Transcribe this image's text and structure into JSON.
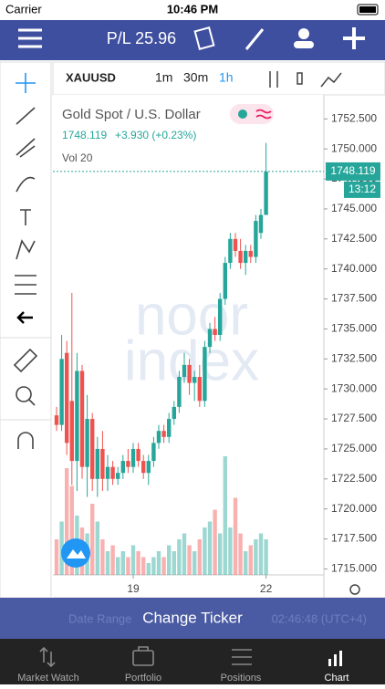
{
  "status_bar": {
    "carrier": "Carrier",
    "time": "10:46 PM"
  },
  "nav_bar": {
    "title": "P/L 25.96"
  },
  "chart_toolbar": {
    "symbol": "XAUUSD",
    "intervals": [
      "1m",
      "30m",
      "1h"
    ]
  },
  "chart_data": {
    "type": "candlestick",
    "title": "Gold Spot / U.S. Dollar",
    "change": "+3.930 (+0.23%)",
    "volume_label": "Vol 20",
    "watermark": [
      "noor",
      "index"
    ],
    "countdown": "13:12",
    "up_color": "#26a69a",
    "down_color": "#ef5350",
    "open": [
      1727.8,
      1727.0,
      1733.0,
      1729.0,
      1724.0,
      1731.5,
      1723.5,
      1727.5,
      1722.5,
      1725.0,
      1722.5,
      1723.5,
      1722.5,
      1723.0,
      1724.0,
      1723.5,
      1725.0,
      1724.0,
      1723.0,
      1724.0,
      1725.5,
      1726.5,
      1726.0,
      1727.5,
      1728.5,
      1731.0,
      1732.0,
      1730.5,
      1731.0,
      1729.0,
      1733.5,
      1735.0,
      1734.5,
      1737.5,
      1740.5,
      1742.5,
      1741.5,
      1740.5,
      1741.5,
      1741.0,
      1743.0,
      1744.5
    ],
    "high": [
      1728.5,
      1734.5,
      1734.0,
      1738.0,
      1733.0,
      1732.0,
      1729.5,
      1728.0,
      1726.0,
      1726.5,
      1724.5,
      1724.0,
      1723.5,
      1724.5,
      1725.0,
      1725.5,
      1725.5,
      1724.5,
      1724.5,
      1726.0,
      1727.0,
      1727.0,
      1728.0,
      1729.0,
      1731.5,
      1733.0,
      1732.5,
      1731.5,
      1732.0,
      1734.0,
      1735.5,
      1736.0,
      1738.0,
      1741.0,
      1743.0,
      1743.0,
      1742.5,
      1742.0,
      1742.0,
      1744.5,
      1745.0,
      1750.5
    ],
    "low": [
      1726.5,
      1726.5,
      1724.5,
      1722.0,
      1721.5,
      1722.5,
      1721.0,
      1721.5,
      1721.0,
      1721.5,
      1721.5,
      1722.0,
      1722.0,
      1722.5,
      1723.0,
      1723.0,
      1723.5,
      1722.5,
      1722.0,
      1723.5,
      1725.0,
      1725.5,
      1725.5,
      1727.0,
      1728.0,
      1730.5,
      1729.5,
      1729.0,
      1728.5,
      1728.5,
      1733.0,
      1734.0,
      1734.0,
      1737.0,
      1740.0,
      1741.0,
      1740.0,
      1739.5,
      1740.5,
      1740.5,
      1742.5,
      1744.5
    ],
    "close": [
      1727.0,
      1732.5,
      1725.5,
      1724.0,
      1731.5,
      1723.5,
      1727.5,
      1722.5,
      1725.0,
      1722.5,
      1723.5,
      1722.5,
      1723.0,
      1724.0,
      1723.5,
      1725.0,
      1724.0,
      1723.0,
      1724.0,
      1725.5,
      1726.5,
      1726.0,
      1727.5,
      1728.5,
      1731.0,
      1732.0,
      1730.5,
      1731.0,
      1729.0,
      1733.5,
      1735.0,
      1734.5,
      1737.5,
      1740.5,
      1742.5,
      1741.5,
      1740.5,
      1741.5,
      1741.0,
      1744.0,
      1744.5,
      1748.119
    ],
    "volume": [
      30,
      45,
      90,
      75,
      50,
      40,
      35,
      60,
      45,
      30,
      20,
      25,
      15,
      20,
      15,
      25,
      20,
      15,
      10,
      15,
      20,
      15,
      25,
      20,
      30,
      35,
      25,
      20,
      30,
      40,
      45,
      55,
      35,
      100,
      40,
      65,
      35,
      20,
      25,
      30,
      35,
      30
    ],
    "ylim": [
      1714.5,
      1754.5
    ],
    "yticks": [
      {
        "value": 1715,
        "label": "1715.000"
      },
      {
        "value": 1717.5,
        "label": "1717.500"
      },
      {
        "value": 1720,
        "label": "1720.000"
      },
      {
        "value": 1722.5,
        "label": "1722.500"
      },
      {
        "value": 1725,
        "label": "1725.000"
      },
      {
        "value": 1727.5,
        "label": "1727.500"
      },
      {
        "value": 1730,
        "label": "1730.000"
      },
      {
        "value": 1732.5,
        "label": "1732.500"
      },
      {
        "value": 1735,
        "label": "1735.000"
      },
      {
        "value": 1737.5,
        "label": "1737.500"
      },
      {
        "value": 1740,
        "label": "1740.000"
      },
      {
        "value": 1742.5,
        "label": "1742.500"
      },
      {
        "value": 1745,
        "label": "1745.000"
      },
      {
        "value": 1747.5,
        "label": "1747.500"
      },
      {
        "value": 1750,
        "label": "1750.000"
      },
      {
        "value": 1752.5,
        "label": "1752.500"
      }
    ],
    "xticks": [
      {
        "value": 15,
        "label": "19"
      },
      {
        "value": 41,
        "label": "22"
      }
    ]
  },
  "ticker_bar": {
    "button": "Change Ticker",
    "left": "Date Range",
    "right": "02:46:48 (UTC+4)"
  },
  "tabs": [
    "Market Watch",
    "Portfolio",
    "Positions",
    "Chart"
  ]
}
